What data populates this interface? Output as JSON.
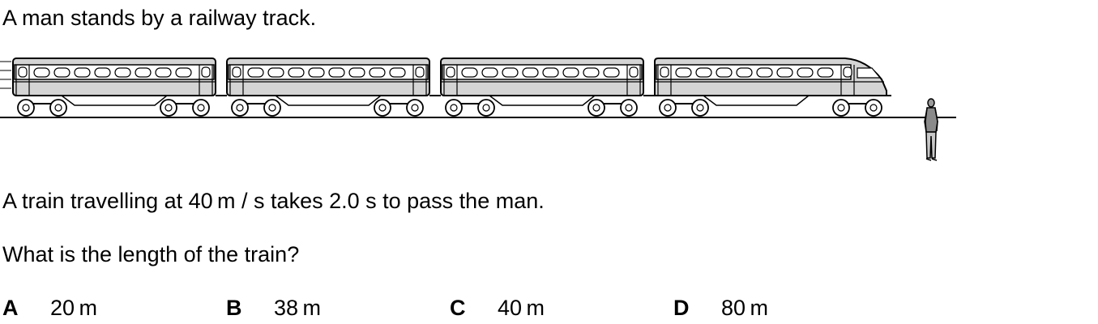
{
  "question": {
    "intro": "A man stands by a railway track.",
    "statement": "A train travelling at 40 m / s takes 2.0 s to pass the man.",
    "prompt": "What is the length of the train?"
  },
  "options": [
    {
      "letter": "A",
      "value": "20 m"
    },
    {
      "letter": "B",
      "value": "38 m"
    },
    {
      "letter": "C",
      "value": "40 m"
    },
    {
      "letter": "D",
      "value": "80 m"
    }
  ],
  "diagram": {
    "carriage_count": 4,
    "carriage_fill": "#d4d4d4",
    "stroke_color": "#000000",
    "figure": "man-standing"
  }
}
